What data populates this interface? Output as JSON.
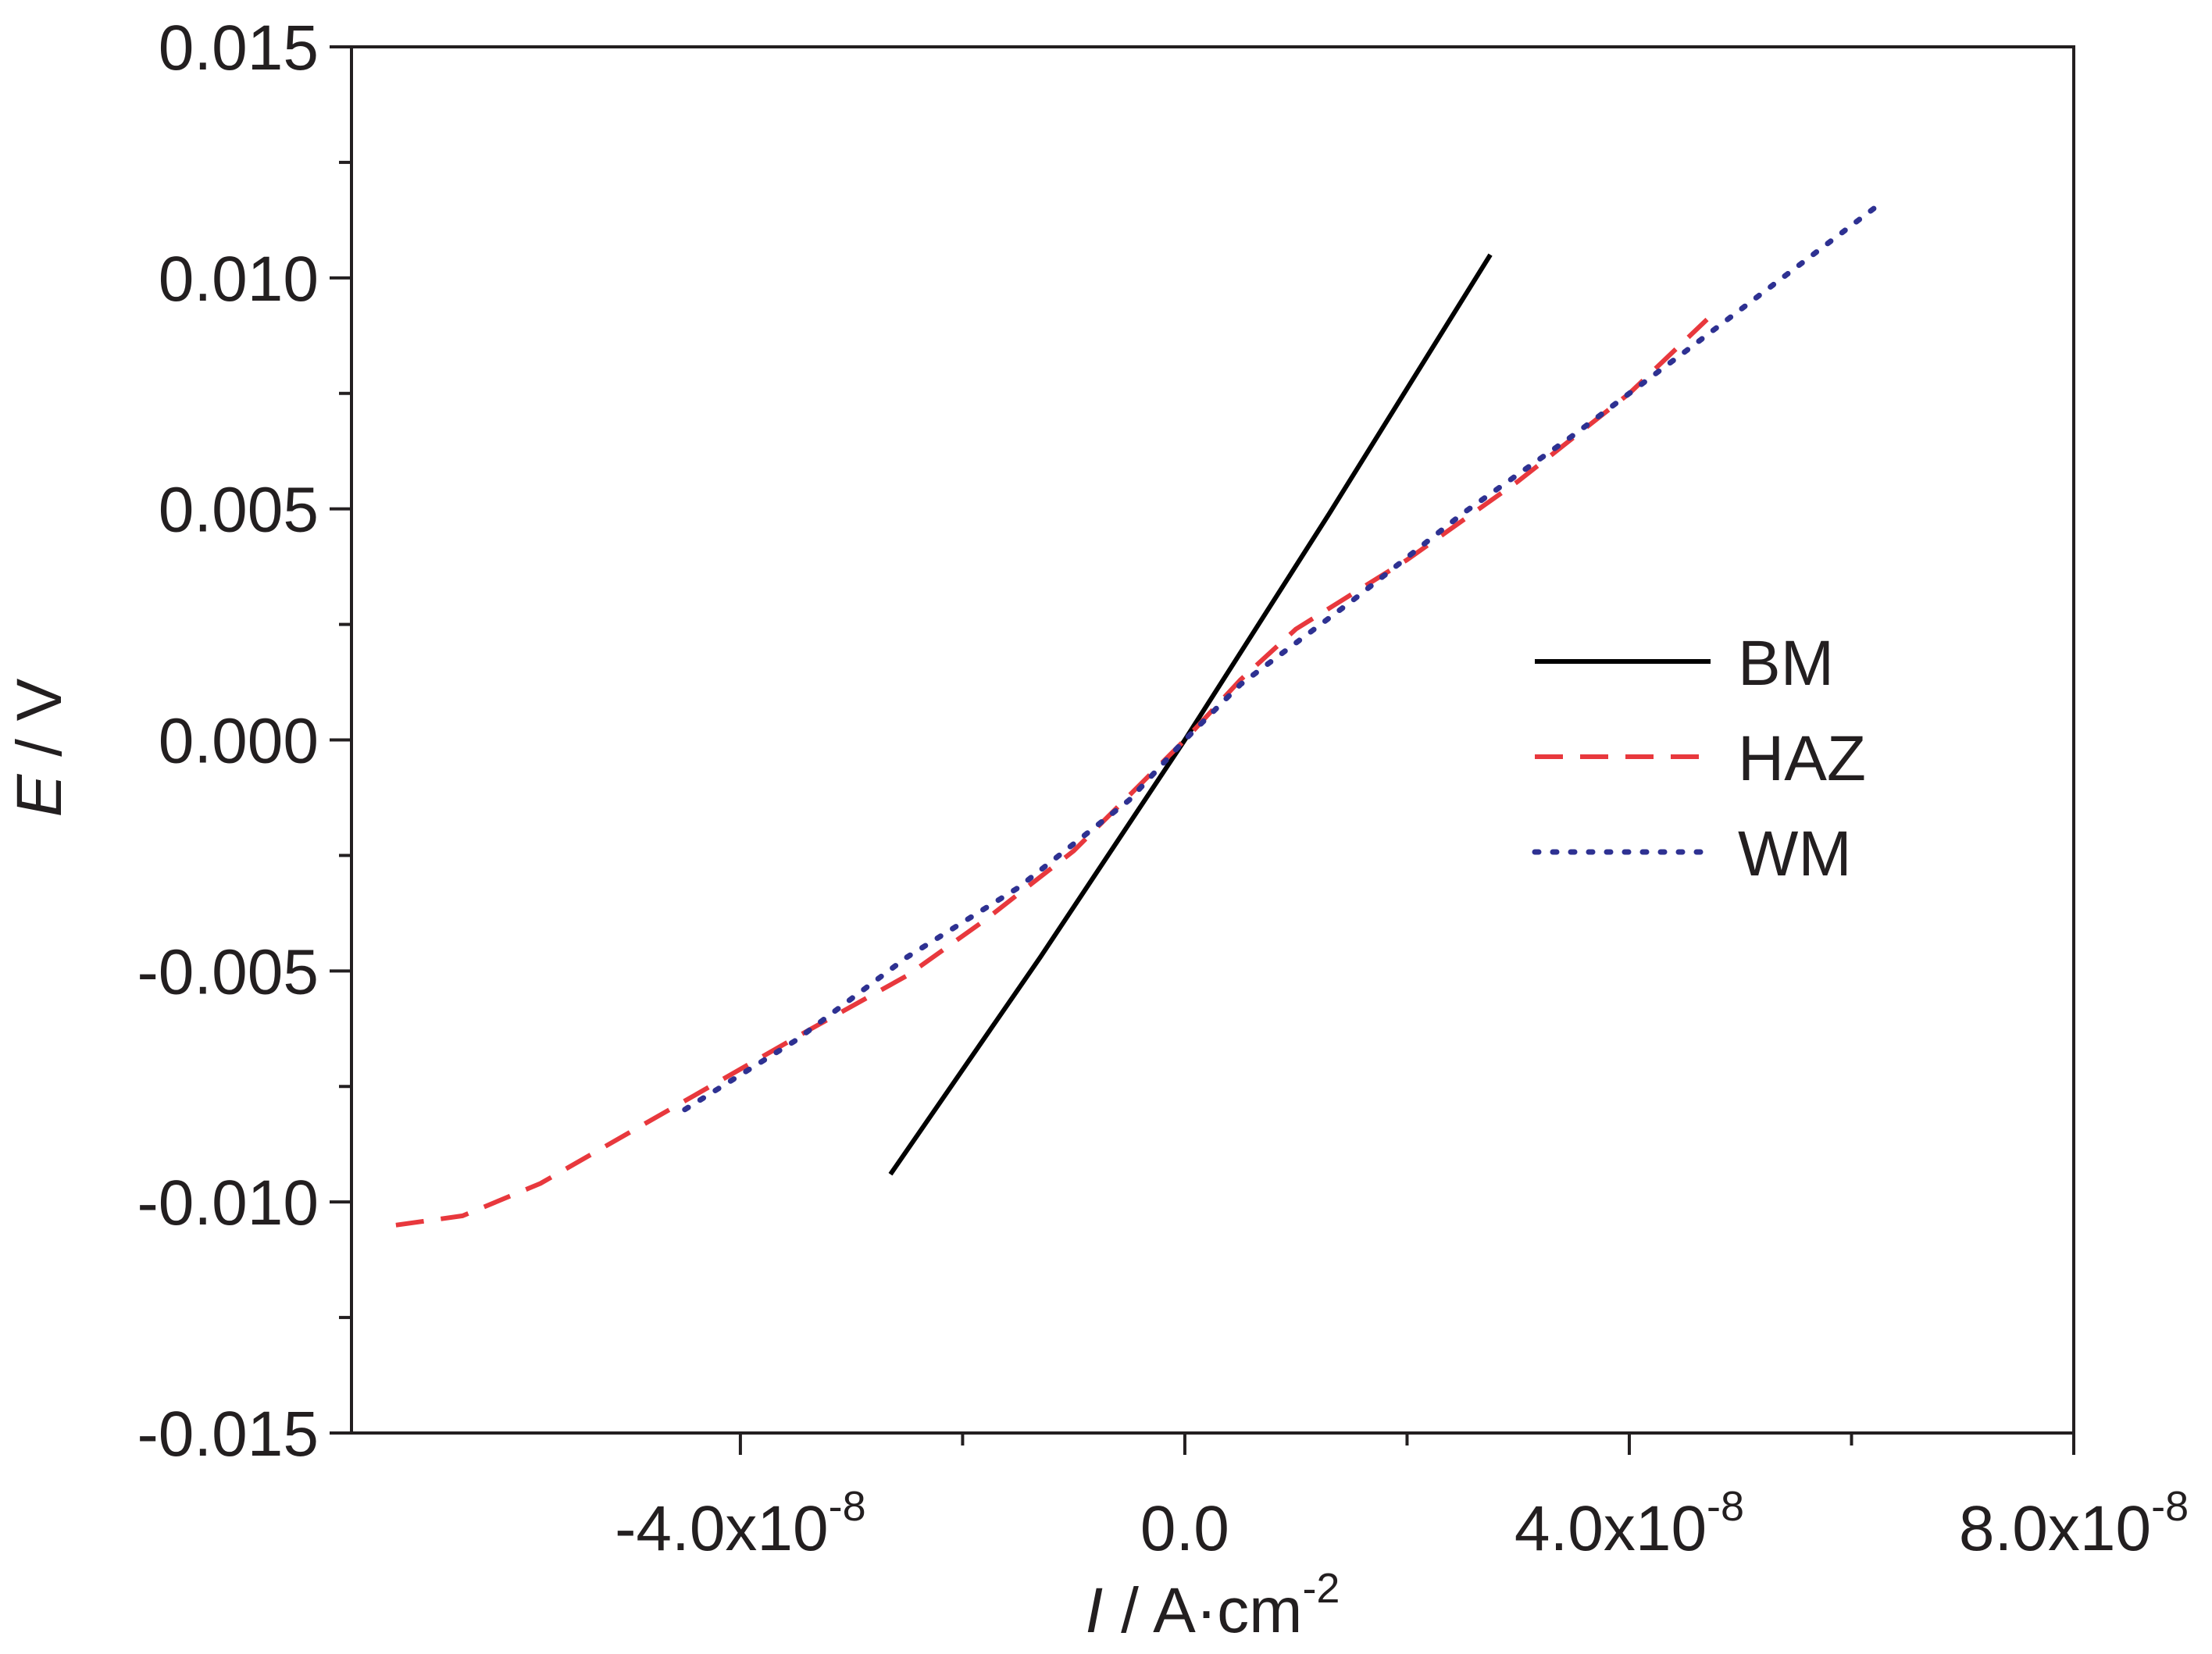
{
  "chart_data": {
    "type": "line",
    "xlabel": {
      "italic": "I",
      "rest": " / A·cm",
      "sup": "-2"
    },
    "ylabel": {
      "italic": "E",
      "rest": " / V"
    },
    "xlim": [
      -7.5e-08,
      8e-08
    ],
    "ylim": [
      -0.015,
      0.015
    ],
    "x_tick_labels": [
      {
        "value": -4e-08,
        "base": "-4.0x10",
        "sup": "-8"
      },
      {
        "value": 0.0,
        "base": "0.0",
        "sup": ""
      },
      {
        "value": 4e-08,
        "base": "4.0x10",
        "sup": "-8"
      },
      {
        "value": 8e-08,
        "base": "8.0x10",
        "sup": "-8"
      }
    ],
    "x_minor_ticks": [
      -2e-08,
      2e-08,
      6e-08
    ],
    "y_tick_labels": [
      "-0.015",
      "-0.010",
      "-0.005",
      "0.000",
      "0.005",
      "0.010",
      "0.015"
    ],
    "y_ticks": [
      -0.015,
      -0.01,
      -0.005,
      0.0,
      0.005,
      0.01,
      0.015
    ],
    "y_minor_ticks": [
      -0.0125,
      -0.0075,
      -0.0025,
      0.0025,
      0.0075,
      0.0125
    ],
    "grid": false,
    "legend_position": "right-center",
    "series": [
      {
        "name": "BM",
        "style": "solid",
        "color": "#000000",
        "x": [
          -2.65e-08,
          -1.3e-08,
          0.0,
          1.3e-08,
          2.75e-08
        ],
        "y": [
          -0.0094,
          -0.0047,
          0.0,
          0.0049,
          0.0105
        ]
      },
      {
        "name": "HAZ",
        "style": "dashed",
        "color": "#e8383d",
        "x": [
          -7.1e-08,
          -6.5e-08,
          -5.8e-08,
          -5e-08,
          -4.2e-08,
          -3.4e-08,
          -2.5e-08,
          -1.8e-08,
          -1e-08,
          -5e-09,
          0.0,
          5e-09,
          1e-08,
          1.4e-08,
          2e-08,
          3e-08,
          4e-08,
          4.7e-08
        ],
        "y": [
          -0.0105,
          -0.0103,
          -0.0096,
          -0.0085,
          -0.0074,
          -0.0063,
          -0.0051,
          -0.0039,
          -0.0024,
          -0.0012,
          0.0,
          0.0013,
          0.0024,
          0.003,
          0.0039,
          0.0056,
          0.0075,
          0.0091
        ]
      },
      {
        "name": "WM",
        "style": "dotted",
        "color": "#2e3192",
        "x": [
          -4.5e-08,
          -3.5e-08,
          -2.5e-08,
          -1.5e-08,
          -5e-09,
          0.0,
          5e-09,
          1.5e-08,
          2.5e-08,
          3.5e-08,
          4.5e-08,
          6.2e-08
        ],
        "y": [
          -0.008,
          -0.0065,
          -0.0047,
          -0.0032,
          -0.0013,
          0.0,
          0.0012,
          0.003,
          0.0049,
          0.0066,
          0.0084,
          0.0115
        ]
      }
    ]
  }
}
